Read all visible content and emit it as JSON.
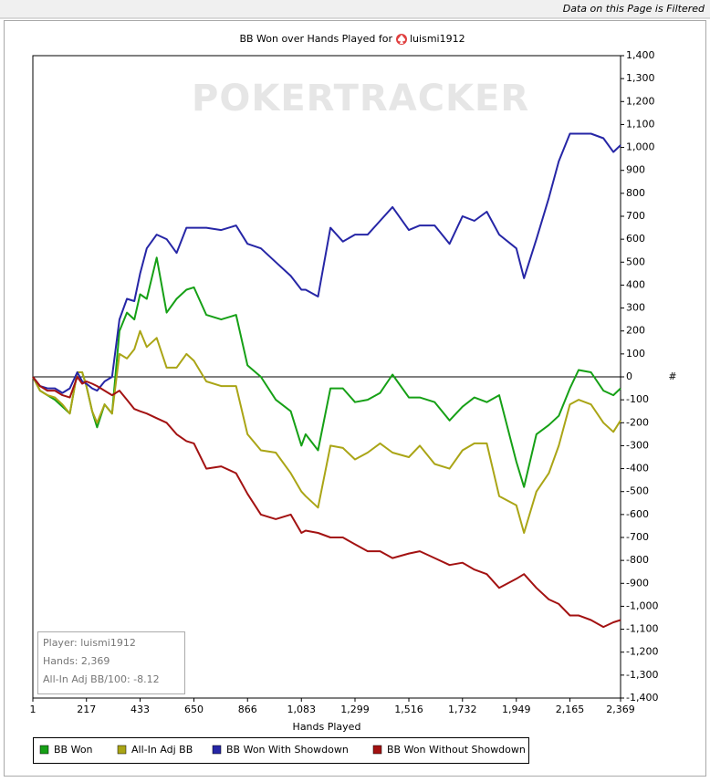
{
  "banner": "Data on this Page is Filtered",
  "chart_data": {
    "type": "line",
    "title": "BB Won over Hands Played for",
    "title_player": "luismi1912",
    "watermark": "POKERTRACKER",
    "xlabel": "Hands Played",
    "ylabel": "#",
    "annotations": [
      "Player: luismi1912",
      "Hands: 2,369",
      "All-In Adj BB/100: -8.12"
    ],
    "xlim": [
      1,
      2369
    ],
    "ylim": [
      -1400,
      1400
    ],
    "xticks": [
      1,
      217,
      433,
      650,
      866,
      {
        "value": 1083,
        "label": "1,083"
      },
      {
        "value": 1299,
        "label": "1,299"
      },
      {
        "value": 1516,
        "label": "1,516"
      },
      {
        "value": 1732,
        "label": "1,732"
      },
      {
        "value": 1949,
        "label": "1,949"
      },
      {
        "value": 2165,
        "label": "2,165"
      },
      {
        "value": 2369,
        "label": "2,369"
      }
    ],
    "yticks": [
      {
        "value": -1400,
        "label": "-1,400"
      },
      {
        "value": -1300,
        "label": "-1,300"
      },
      {
        "value": -1200,
        "label": "-1,200"
      },
      {
        "value": -1100,
        "label": "-1,100"
      },
      {
        "value": -1000,
        "label": "-1,000"
      },
      -900,
      -800,
      -700,
      -600,
      -500,
      -400,
      -300,
      -200,
      -100,
      0,
      100,
      200,
      300,
      400,
      500,
      600,
      700,
      800,
      900,
      {
        "value": 1000,
        "label": "1,000"
      },
      {
        "value": 1100,
        "label": "1,100"
      },
      {
        "value": 1200,
        "label": "1,200"
      },
      {
        "value": 1300,
        "label": "1,300"
      },
      {
        "value": 1400,
        "label": "1,400"
      }
    ],
    "x": [
      1,
      30,
      60,
      90,
      120,
      150,
      180,
      200,
      217,
      240,
      260,
      290,
      320,
      350,
      380,
      410,
      433,
      460,
      500,
      540,
      580,
      620,
      650,
      700,
      760,
      820,
      866,
      920,
      980,
      1040,
      1083,
      1100,
      1150,
      1200,
      1250,
      1299,
      1350,
      1400,
      1450,
      1516,
      1560,
      1620,
      1680,
      1732,
      1780,
      1830,
      1880,
      1949,
      1980,
      2030,
      2080,
      2120,
      2165,
      2200,
      2250,
      2300,
      2340,
      2369
    ],
    "series": [
      {
        "name": "BB Won",
        "color": "#16a016",
        "values": [
          0,
          -60,
          -80,
          -100,
          -130,
          -160,
          20,
          20,
          -40,
          -150,
          -220,
          -120,
          -160,
          200,
          280,
          250,
          360,
          340,
          520,
          280,
          340,
          380,
          390,
          270,
          250,
          270,
          50,
          0,
          -100,
          -150,
          -300,
          -250,
          -320,
          -50,
          -50,
          -110,
          -100,
          -70,
          10,
          -90,
          -90,
          -110,
          -190,
          -130,
          -90,
          -110,
          -80,
          -370,
          -480,
          -250,
          -210,
          -170,
          -50,
          30,
          20,
          -60,
          -80,
          -50
        ]
      },
      {
        "name": "All-In Adj BB",
        "color": "#aaa516",
        "values": [
          0,
          -60,
          -80,
          -90,
          -120,
          -160,
          20,
          20,
          -40,
          -150,
          -200,
          -120,
          -160,
          100,
          80,
          120,
          200,
          130,
          170,
          40,
          40,
          100,
          70,
          -20,
          -40,
          -40,
          -250,
          -320,
          -330,
          -420,
          -500,
          -520,
          -570,
          -300,
          -310,
          -360,
          -330,
          -290,
          -330,
          -350,
          -300,
          -380,
          -400,
          -320,
          -290,
          -290,
          -520,
          -560,
          -680,
          -500,
          -420,
          -300,
          -120,
          -100,
          -120,
          -200,
          -240,
          -190
        ]
      },
      {
        "name": "BB Won With Showdown",
        "color": "#2626a6",
        "values": [
          0,
          -40,
          -50,
          -50,
          -70,
          -50,
          20,
          -20,
          -30,
          -50,
          -60,
          -20,
          0,
          250,
          340,
          330,
          450,
          560,
          620,
          600,
          540,
          650,
          650,
          650,
          640,
          660,
          580,
          560,
          500,
          440,
          380,
          380,
          350,
          650,
          590,
          620,
          620,
          680,
          740,
          640,
          660,
          660,
          580,
          700,
          680,
          720,
          620,
          560,
          430,
          600,
          780,
          940,
          1060,
          1060,
          1060,
          1040,
          980,
          1010
        ]
      },
      {
        "name": "BB Won Without Showdown",
        "color": "#a31212",
        "values": [
          0,
          -40,
          -60,
          -60,
          -80,
          -90,
          0,
          -30,
          -20,
          -30,
          -40,
          -60,
          -80,
          -60,
          -100,
          -140,
          -150,
          -160,
          -180,
          -200,
          -250,
          -280,
          -290,
          -400,
          -390,
          -420,
          -510,
          -600,
          -620,
          -600,
          -680,
          -670,
          -680,
          -700,
          -700,
          -730,
          -760,
          -760,
          -790,
          -770,
          -760,
          -790,
          -820,
          -810,
          -840,
          -860,
          -920,
          -880,
          -860,
          -920,
          -970,
          -990,
          -1040,
          -1040,
          -1060,
          -1090,
          -1070,
          -1060
        ]
      }
    ]
  }
}
